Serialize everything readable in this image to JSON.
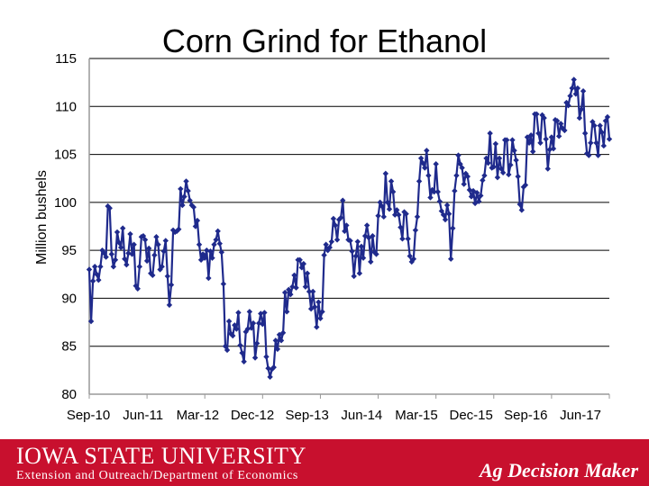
{
  "chart_data": {
    "type": "line",
    "title": "Corn Grind for Ethanol",
    "ylabel": "Million bushels",
    "xlabel": "",
    "ylim": [
      80,
      115
    ],
    "yticks": [
      80,
      85,
      90,
      95,
      100,
      105,
      110,
      115
    ],
    "x_tick_labels": [
      "Sep-10",
      "Jun-11",
      "Mar-12",
      "Dec-12",
      "Sep-13",
      "Jun-14",
      "Mar-15",
      "Dec-15",
      "Sep-16",
      "Jun-17"
    ],
    "grid": true,
    "legend": "none",
    "line_color": "#1f2a8c",
    "x_start": "2010-09",
    "x_step": "weekly",
    "series": [
      {
        "values": [
          93.0,
          87.6,
          91.8,
          93.3,
          92.5,
          91.9,
          93.3,
          95.0,
          94.7,
          94.3,
          99.6,
          99.4,
          94.6,
          93.3,
          94.0,
          96.9,
          95.8,
          95.3,
          97.3,
          94.1,
          93.5,
          94.7,
          96.7,
          94.6,
          95.6,
          91.3,
          91.0,
          93.3,
          96.4,
          96.5,
          96.1,
          93.9,
          95.2,
          92.6,
          92.4,
          94.5,
          96.4,
          95.6,
          93.0,
          93.3,
          94.9,
          96.0,
          92.3,
          89.3,
          91.4,
          97.1,
          96.9,
          97.0,
          97.2,
          101.4,
          99.7,
          100.6,
          102.2,
          101.2,
          100.2,
          99.7,
          99.5,
          97.5,
          98.1,
          95.6,
          94.0,
          94.6,
          94.2,
          95.0,
          92.1,
          94.9,
          94.2,
          95.6,
          96.1,
          97.0,
          95.7,
          94.8,
          91.5,
          85.0,
          84.6,
          87.6,
          86.3,
          86.1,
          87.2,
          86.8,
          88.5,
          85.1,
          84.3,
          83.4,
          86.5,
          86.8,
          88.6,
          86.9,
          87.4,
          83.8,
          85.3,
          87.4,
          88.4,
          87.3,
          88.5,
          83.9,
          82.7,
          81.8,
          82.6,
          82.8,
          85.6,
          84.7,
          86.2,
          85.6,
          86.4,
          90.6,
          88.6,
          90.9,
          90.4,
          91.2,
          92.4,
          91.1,
          94.0,
          94.0,
          93.2,
          93.6,
          91.2,
          92.6,
          90.7,
          88.9,
          90.7,
          89.1,
          87.0,
          89.6,
          87.9,
          88.6,
          94.5,
          95.6,
          95.0,
          95.3,
          95.9,
          98.3,
          97.6,
          96.1,
          98.2,
          98.4,
          100.2,
          97.0,
          97.6,
          96.1,
          96.0,
          94.9,
          92.3,
          94.4,
          95.9,
          92.6,
          95.4,
          94.2,
          96.5,
          97.6,
          96.3,
          93.8,
          96.5,
          94.8,
          94.6,
          98.6,
          100.0,
          99.6,
          98.5,
          103.0,
          100.0,
          99.3,
          102.2,
          101.1,
          98.7,
          99.2,
          98.7,
          97.4,
          96.2,
          99.0,
          98.8,
          96.2,
          94.4,
          93.8,
          94.1,
          97.1,
          98.5,
          102.2,
          104.6,
          104.1,
          103.6,
          105.4,
          102.8,
          100.5,
          101.3,
          101.1,
          104.0,
          101.1,
          100.1,
          99.1,
          98.7,
          98.2,
          99.7,
          98.8,
          94.1,
          97.3,
          101.2,
          102.8,
          104.9,
          104.0,
          103.6,
          101.9,
          103.0,
          102.7,
          101.3,
          100.6,
          101.2,
          99.9,
          101.0,
          100.1,
          100.7,
          102.3,
          102.8,
          104.6,
          104.1,
          107.2,
          103.6,
          103.7,
          106.1,
          102.6,
          104.6,
          103.5,
          103.1,
          106.5,
          106.5,
          102.9,
          103.9,
          106.5,
          105.4,
          104.4,
          102.7,
          99.8,
          99.2,
          101.6,
          101.8,
          106.8,
          106.2,
          107.0,
          105.3,
          109.2,
          109.2,
          107.2,
          106.2,
          109.1,
          108.8,
          106.6,
          103.5,
          105.5,
          106.8,
          105.6,
          108.6,
          108.5,
          106.9,
          108.2,
          107.7,
          107.5,
          110.4,
          110.1,
          111.1,
          111.9,
          112.8,
          111.3,
          111.9,
          108.8,
          109.7,
          111.6,
          107.2,
          105.1,
          104.9,
          106.2,
          108.4,
          108.0,
          106.2,
          104.9,
          108.0,
          107.3,
          105.9,
          108.5,
          108.9,
          106.6
        ]
      }
    ]
  },
  "footer": {
    "university": "IOWA STATE UNIVERSITY",
    "department": "Extension and Outreach/Department of Economics",
    "brand": "Ag Decision Maker"
  }
}
